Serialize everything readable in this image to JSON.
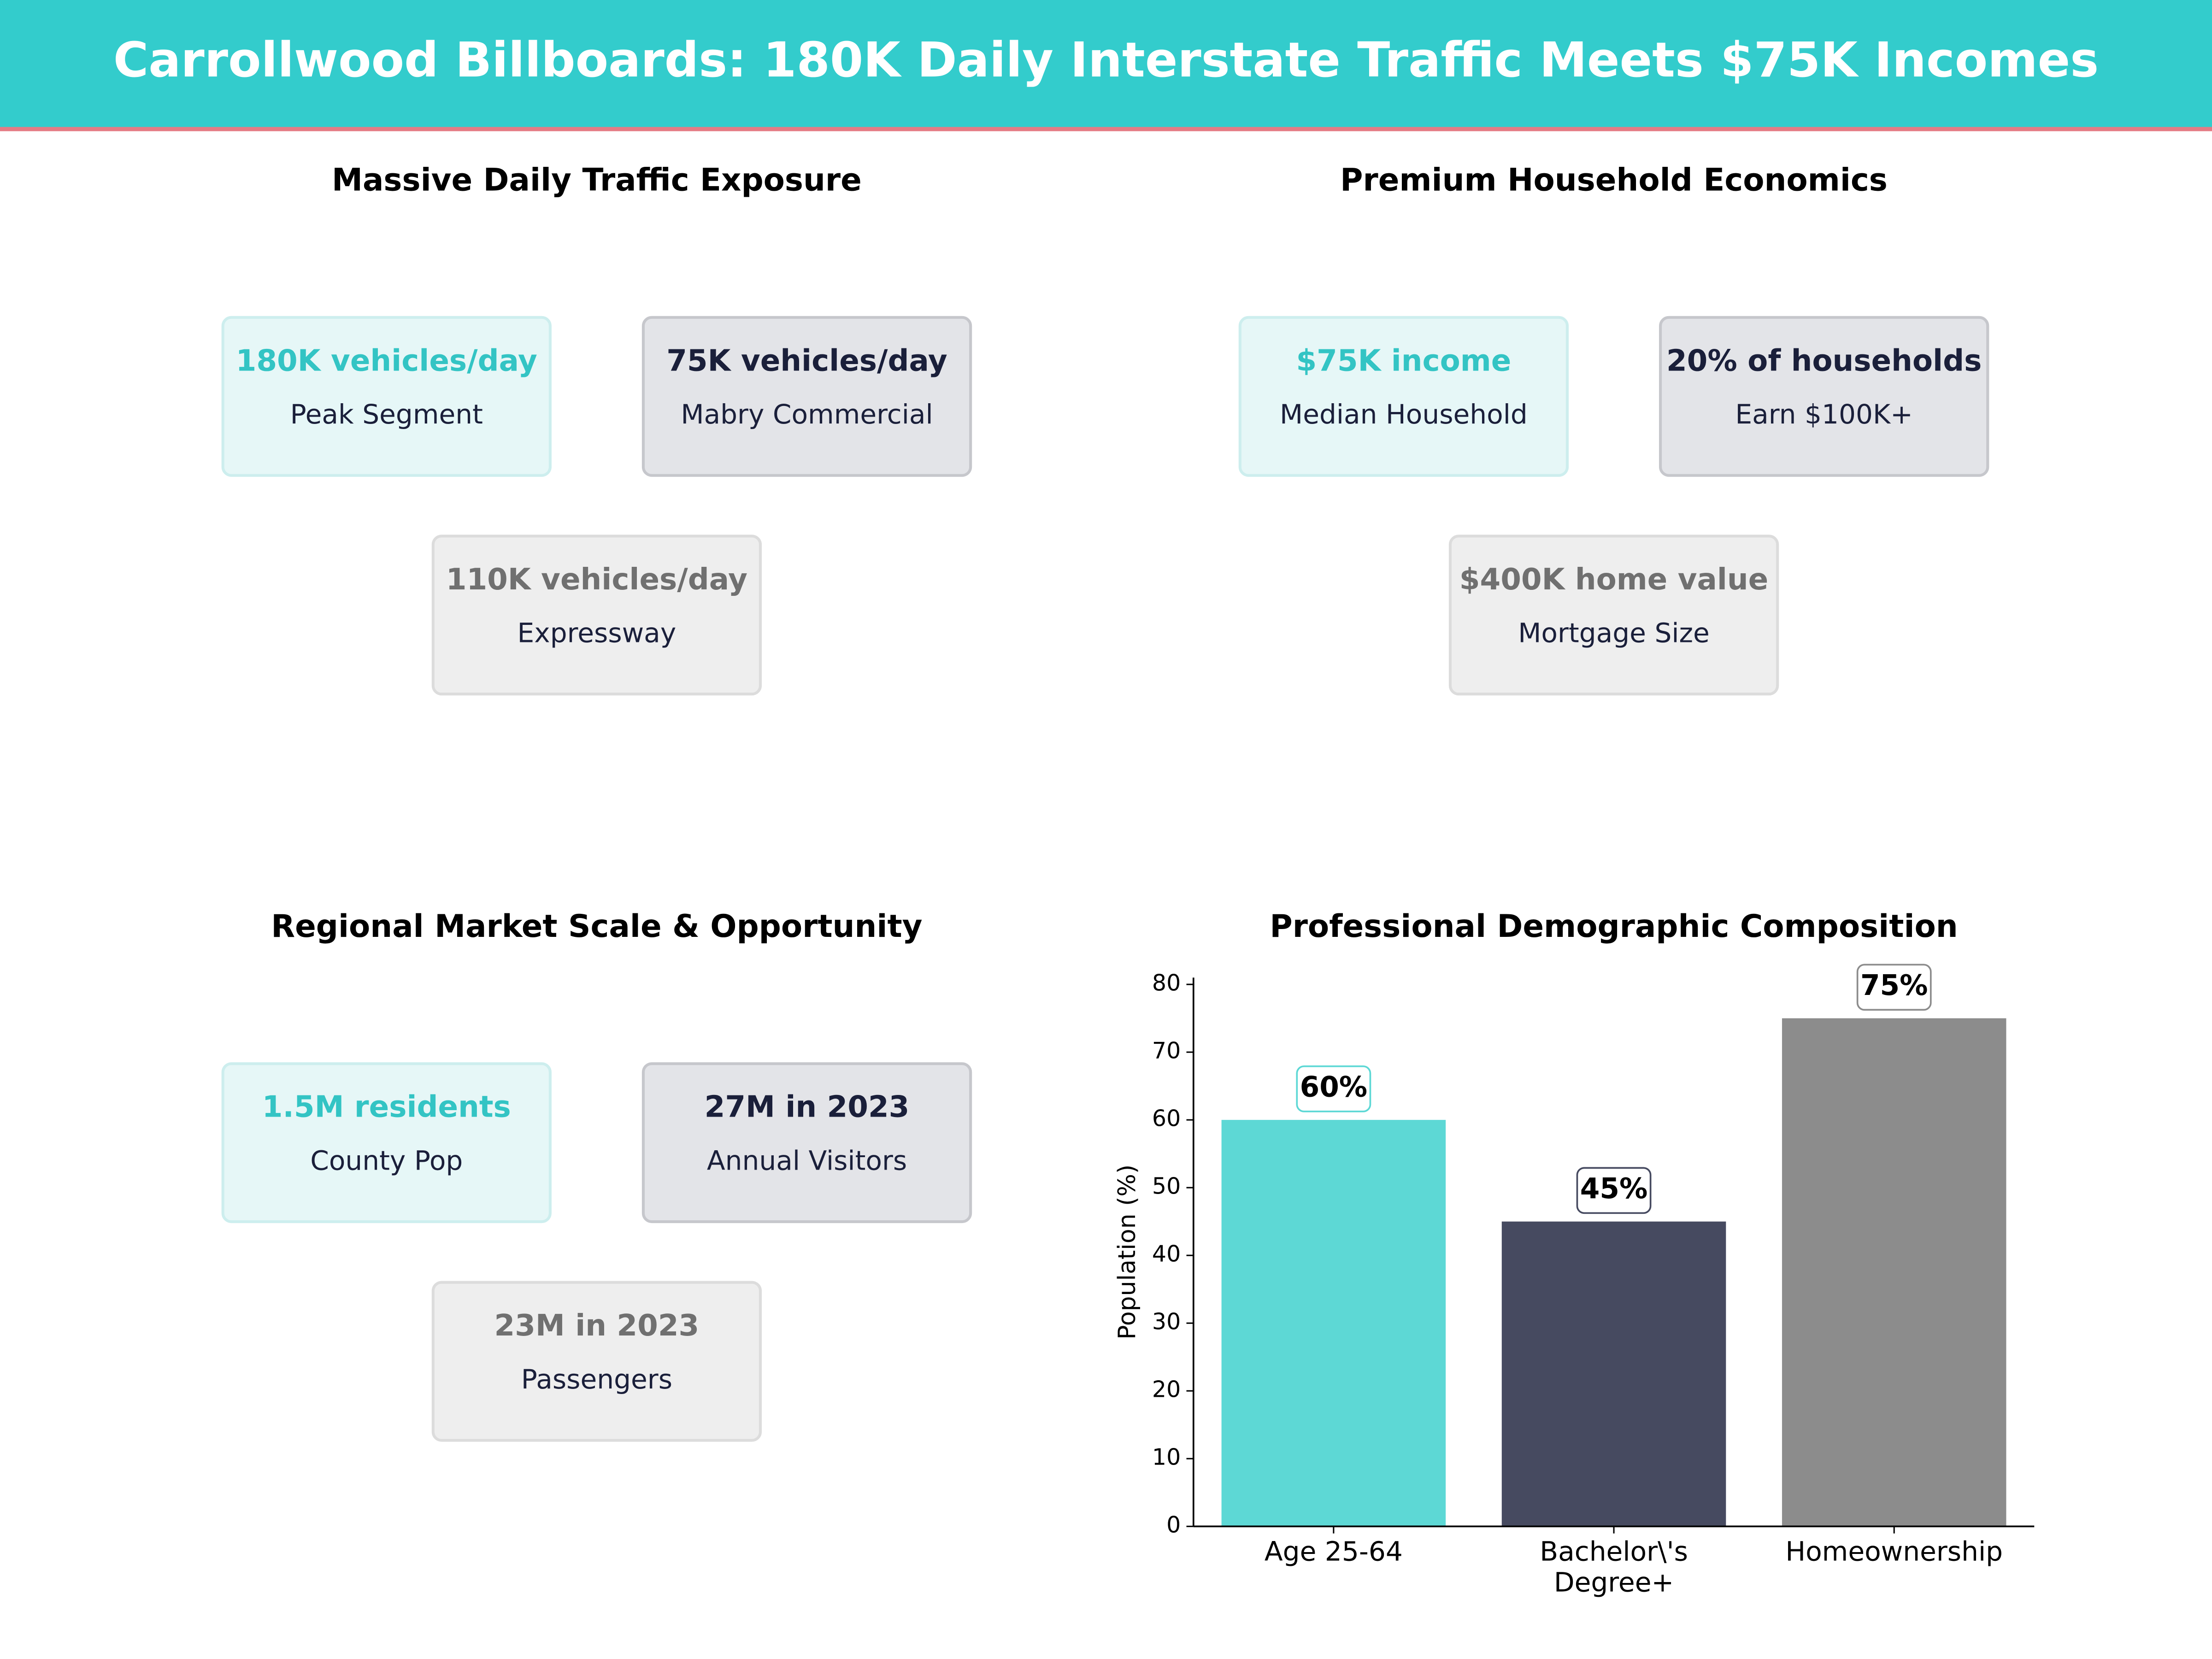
{
  "header": {
    "title": "Carrollwood Billboards: 180K Daily Interstate Traffic Meets $75K Incomes"
  },
  "panels": [
    {
      "title": "Massive Daily Traffic Exposure",
      "cards": [
        {
          "value": "180K vehicles/day",
          "label": "Peak Segment"
        },
        {
          "value": "75K vehicles/day",
          "label": "Mabry Commercial"
        },
        {
          "value": "110K vehicles/day",
          "label": "Expressway"
        }
      ]
    },
    {
      "title": "Premium Household Economics",
      "cards": [
        {
          "value": "$75K income",
          "label": "Median Household"
        },
        {
          "value": "20% of households",
          "label": "Earn $100K+"
        },
        {
          "value": "$400K home value",
          "label": "Mortgage Size"
        }
      ]
    },
    {
      "title": "Regional Market Scale & Opportunity",
      "cards": [
        {
          "value": "1.5M residents",
          "label": "County Pop"
        },
        {
          "value": "27M in 2023",
          "label": "Annual Visitors"
        },
        {
          "value": "23M in 2023",
          "label": "Passengers"
        }
      ]
    }
  ],
  "chart_data": {
    "type": "bar",
    "title": "Professional Demographic Composition",
    "ylabel": "Population (%)",
    "categories": [
      "Age 25-64",
      "Bachelor\\'s\nDegree+",
      "Homeownership"
    ],
    "values": [
      60,
      45,
      75
    ],
    "value_labels": [
      "60%",
      "45%",
      "75%"
    ],
    "colors": [
      "#5dd8d5",
      "#464a60",
      "#8c8c8c"
    ],
    "ylim": [
      0,
      81
    ],
    "yticks": [
      0,
      10,
      20,
      30,
      40,
      50,
      60,
      70,
      80
    ],
    "grid": false
  }
}
